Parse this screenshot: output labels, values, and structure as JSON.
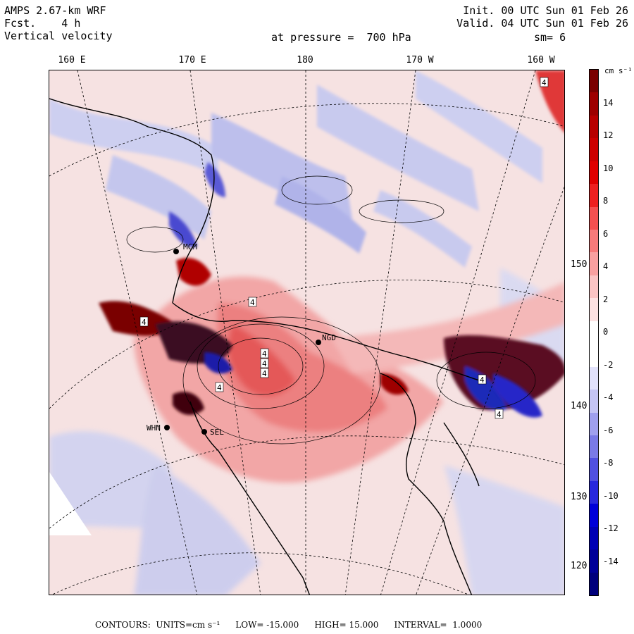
{
  "header": {
    "model": "AMPS 2.67-km WRF",
    "fcst_label": "Fcst.",
    "fcst_value": "4 h",
    "field": "Vertical velocity",
    "init": "Init. 00 UTC Sun 01 Feb 26",
    "valid": "Valid. 04 UTC Sun 01 Feb 26",
    "level": "at pressure =  700 hPa",
    "smoothing": "sm= 6"
  },
  "axes": {
    "longitude_labels": [
      "160 E",
      "170 E",
      "180",
      "170 W",
      "160 W"
    ],
    "latitude_labels": [
      "150 W",
      "140 W",
      "130 W",
      "120 W"
    ]
  },
  "stations": [
    "MCM",
    "WHN",
    "SEL",
    "NGD"
  ],
  "contour_labels": [
    "4",
    "4",
    "4",
    "4",
    "4",
    "4",
    "4",
    "4",
    "4"
  ],
  "colorbar": {
    "unit": "cm s⁻¹",
    "tick_labels": [
      "14",
      "12",
      "10",
      "8",
      "6",
      "4",
      "2",
      "0",
      "-2",
      "-4",
      "-6",
      "-8",
      "-10",
      "-12",
      "-14"
    ],
    "colors": [
      "#7a0000",
      "#9e0000",
      "#b80000",
      "#cc0000",
      "#e00000",
      "#ee2020",
      "#f45050",
      "#f77a7a",
      "#f9a0a0",
      "#fbc4c4",
      "#fde2e2",
      "#ffffff",
      "#ffffff",
      "#e2e2fb",
      "#c4c4f4",
      "#a0a0ee",
      "#7a7ae6",
      "#5050e0",
      "#2828dc",
      "#0000d8",
      "#0000b4",
      "#000098",
      "#00007c"
    ]
  },
  "footer": {
    "contours": "CONTOURS:  UNITS=cm s⁻¹",
    "low": "LOW= -15.000",
    "high": "HIGH= 15.000",
    "interval": "INTERVAL=  1.0000"
  }
}
